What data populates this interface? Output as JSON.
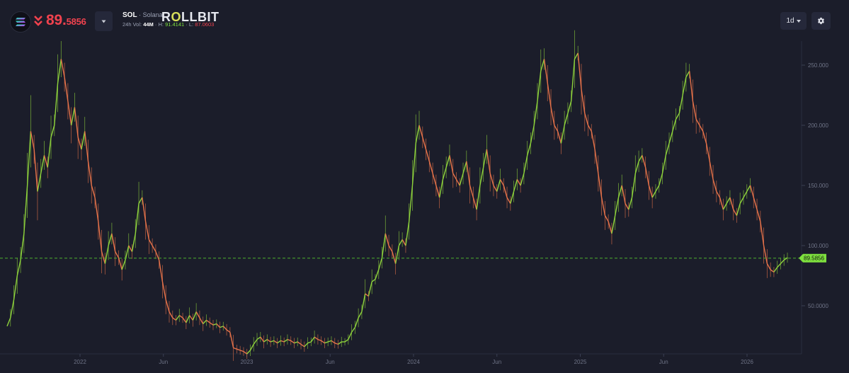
{
  "header": {
    "coin_icon": "solana-icon",
    "price_direction_icon": "double-chevron-down-icon",
    "price_main": "89.",
    "price_decimals": "5856",
    "pair_symbol": "SOL",
    "pair_separator": " · ",
    "pair_name": "Solana",
    "stats": {
      "vol_label": "24h Vol: ",
      "vol_value": "44M",
      "sep1": " · ",
      "high_label": "H: ",
      "high_value": "91.4141",
      "sep2": " · ",
      "low_label": "L: ",
      "low_value": "87.0603"
    },
    "brand": {
      "prefix": "R",
      "highlight": "O",
      "suffix": "LLBIT"
    },
    "timeframe": "1d",
    "settings_icon": "gear-icon"
  },
  "colors": {
    "background": "#1b1d2a",
    "up": "#7ee03e",
    "down": "#f0424e",
    "candle_up": "#8fd43c",
    "candle_down": "#e8734a",
    "price_line": "#4caf2e"
  },
  "chart_data": {
    "type": "line",
    "ylim": [
      10,
      270
    ],
    "y_ticks": [
      {
        "value": 250,
        "label": "250.000"
      },
      {
        "value": 200,
        "label": "200.000"
      },
      {
        "value": 150,
        "label": "150.000"
      },
      {
        "value": 100,
        "label": "100.000"
      },
      {
        "value": 50,
        "label": "50.0000"
      }
    ],
    "x_ticks": [
      "2022",
      "Jun",
      "2023",
      "Jun",
      "2024",
      "Jun",
      "2025",
      "Jun",
      "2026"
    ],
    "current_price": 89.5856,
    "current_price_label": "89.5856",
    "series": [
      {
        "values": [
          33,
          40,
          55,
          75,
          88,
          110,
          150,
          195,
          180,
          145,
          160,
          175,
          165,
          190,
          200,
          235,
          255,
          240,
          220,
          200,
          215,
          190,
          180,
          195,
          170,
          150,
          140,
          120,
          95,
          85,
          100,
          110,
          95,
          90,
          80,
          88,
          100,
          95,
          110,
          135,
          140,
          120,
          105,
          100,
          95,
          88,
          70,
          55,
          45,
          40,
          38,
          42,
          40,
          36,
          42,
          38,
          45,
          40,
          35,
          38,
          36,
          34,
          35,
          32,
          33,
          30,
          28,
          15,
          14,
          13,
          12,
          10,
          13,
          18,
          22,
          24,
          20,
          22,
          20,
          21,
          19,
          21,
          20,
          22,
          21,
          19,
          20,
          18,
          16,
          19,
          20,
          24,
          22,
          21,
          19,
          20,
          21,
          19,
          18,
          20,
          20,
          22,
          28,
          32,
          40,
          45,
          60,
          58,
          70,
          72,
          80,
          90,
          110,
          100,
          95,
          85,
          100,
          105,
          100,
          120,
          150,
          185,
          200,
          190,
          180,
          170,
          160,
          150,
          140,
          155,
          165,
          175,
          160,
          155,
          150,
          160,
          170,
          150,
          140,
          130,
          150,
          165,
          180,
          160,
          150,
          145,
          155,
          150,
          140,
          135,
          145,
          155,
          150,
          160,
          175,
          185,
          200,
          220,
          245,
          255,
          235,
          215,
          200,
          195,
          185,
          200,
          210,
          220,
          255,
          260,
          230,
          210,
          200,
          195,
          180,
          160,
          140,
          125,
          120,
          110,
          125,
          140,
          150,
          135,
          130,
          140,
          160,
          170,
          175,
          165,
          150,
          140,
          145,
          150,
          160,
          175,
          185,
          195,
          205,
          210,
          225,
          240,
          245,
          220,
          205,
          200,
          195,
          185,
          170,
          155,
          145,
          140,
          130,
          135,
          140,
          130,
          125,
          135,
          140,
          145,
          150,
          140,
          130,
          120,
          100,
          85,
          80,
          78,
          82,
          85,
          88,
          90
        ]
      }
    ]
  }
}
